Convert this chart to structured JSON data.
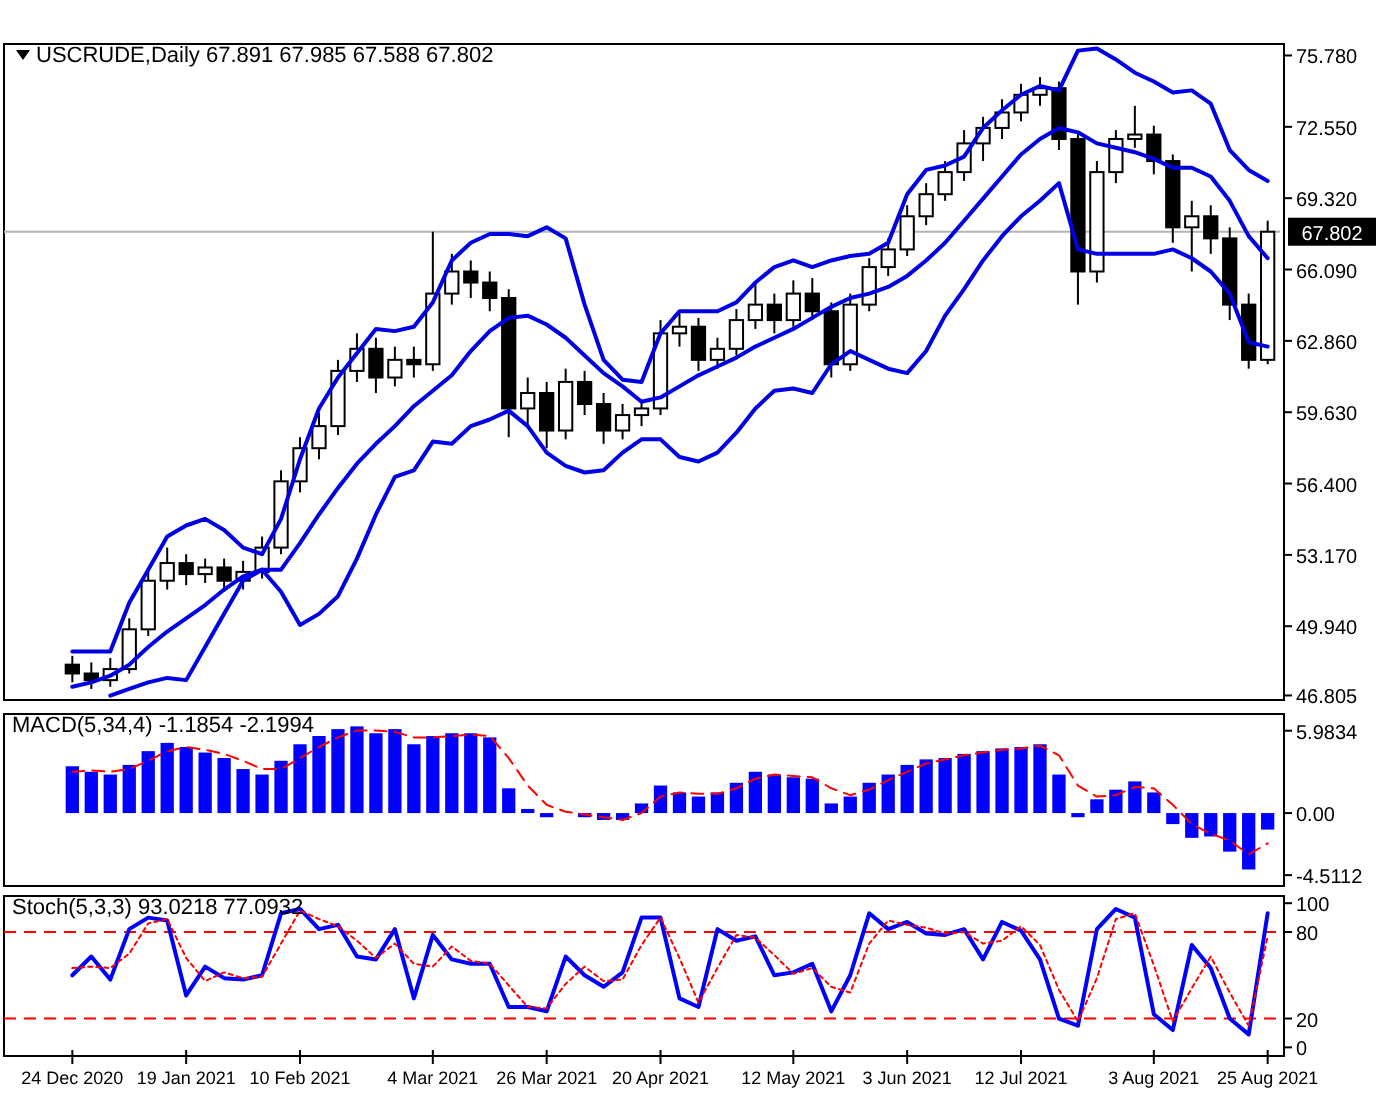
{
  "chart_data": [
    {
      "type": "candlestick",
      "title": "USCRUDE,Daily 67.891 67.985 67.588 67.802",
      "ohlc": [
        [
          48.2,
          48.6,
          47.4,
          47.8
        ],
        [
          47.8,
          48.3,
          47.1,
          47.5
        ],
        [
          47.5,
          48.5,
          47.2,
          48.0
        ],
        [
          48.0,
          50.3,
          47.8,
          49.8
        ],
        [
          49.8,
          52.6,
          49.5,
          52.0
        ],
        [
          52.0,
          53.5,
          51.6,
          52.8
        ],
        [
          52.8,
          53.2,
          51.8,
          52.3
        ],
        [
          52.3,
          53.0,
          51.9,
          52.6
        ],
        [
          52.6,
          53.0,
          51.5,
          52.0
        ],
        [
          52.0,
          52.9,
          51.6,
          52.4
        ],
        [
          52.4,
          54.0,
          52.1,
          53.5
        ],
        [
          53.5,
          57.0,
          53.2,
          56.5
        ],
        [
          56.5,
          58.5,
          56.0,
          58.0
        ],
        [
          58.0,
          59.6,
          57.5,
          59.0
        ],
        [
          59.0,
          62.0,
          58.6,
          61.5
        ],
        [
          61.5,
          63.2,
          61.0,
          62.5
        ],
        [
          62.5,
          63.0,
          60.5,
          61.2
        ],
        [
          61.2,
          62.6,
          60.8,
          62.0
        ],
        [
          62.0,
          62.6,
          61.2,
          61.8
        ],
        [
          61.8,
          67.8,
          61.5,
          65.0
        ],
        [
          65.0,
          66.8,
          64.5,
          66.0
        ],
        [
          66.0,
          66.5,
          64.8,
          65.5
        ],
        [
          65.5,
          66.0,
          64.2,
          64.8
        ],
        [
          64.8,
          65.2,
          58.5,
          59.8
        ],
        [
          59.8,
          61.2,
          59.0,
          60.5
        ],
        [
          60.5,
          61.0,
          58.0,
          58.8
        ],
        [
          58.8,
          61.6,
          58.4,
          61.0
        ],
        [
          61.0,
          61.5,
          59.5,
          60.0
        ],
        [
          60.0,
          60.5,
          58.2,
          58.8
        ],
        [
          58.8,
          60.0,
          58.4,
          59.5
        ],
        [
          59.5,
          60.2,
          59.0,
          59.8
        ],
        [
          59.8,
          63.8,
          59.5,
          63.2
        ],
        [
          63.2,
          64.2,
          62.6,
          63.5
        ],
        [
          63.5,
          63.9,
          61.5,
          62.0
        ],
        [
          62.0,
          63.0,
          61.6,
          62.5
        ],
        [
          62.5,
          64.3,
          62.2,
          63.8
        ],
        [
          63.8,
          65.5,
          63.4,
          64.5
        ],
        [
          64.5,
          65.0,
          63.2,
          63.8
        ],
        [
          63.8,
          65.6,
          63.5,
          65.0
        ],
        [
          65.0,
          65.7,
          63.8,
          64.2
        ],
        [
          64.2,
          64.6,
          61.2,
          61.8
        ],
        [
          61.8,
          65.0,
          61.5,
          64.5
        ],
        [
          64.5,
          66.6,
          64.2,
          66.2
        ],
        [
          66.2,
          67.5,
          65.8,
          67.0
        ],
        [
          67.0,
          69.0,
          66.7,
          68.5
        ],
        [
          68.5,
          70.0,
          68.1,
          69.5
        ],
        [
          69.5,
          71.0,
          69.2,
          70.5
        ],
        [
          70.5,
          72.4,
          70.1,
          71.8
        ],
        [
          71.8,
          73.0,
          71.0,
          72.5
        ],
        [
          72.5,
          73.8,
          72.0,
          73.2
        ],
        [
          73.2,
          74.5,
          72.8,
          74.0
        ],
        [
          74.0,
          74.8,
          73.5,
          74.3
        ],
        [
          74.3,
          74.6,
          71.5,
          72.0
        ],
        [
          72.0,
          72.3,
          64.5,
          66.0
        ],
        [
          66.0,
          71.0,
          65.5,
          70.5
        ],
        [
          70.5,
          72.4,
          70.0,
          72.0
        ],
        [
          72.0,
          73.5,
          71.6,
          72.2
        ],
        [
          72.2,
          72.6,
          70.4,
          71.0
        ],
        [
          71.0,
          71.3,
          67.3,
          68.0
        ],
        [
          68.0,
          69.2,
          66.0,
          68.5
        ],
        [
          68.5,
          69.0,
          66.8,
          67.5
        ],
        [
          67.5,
          68.0,
          63.8,
          64.5
        ],
        [
          64.5,
          65.0,
          61.6,
          62.0
        ],
        [
          62.0,
          68.3,
          61.8,
          67.8
        ]
      ],
      "series": [
        {
          "type": "line",
          "color": "#0000e6",
          "values": [
            48.8,
            48.8,
            48.8,
            51.0,
            52.5,
            54.0,
            54.5,
            54.8,
            54.3,
            53.5,
            53.2,
            54.8,
            57.5,
            59.8,
            61.2,
            62.3,
            63.4,
            63.3,
            63.5,
            64.6,
            66.5,
            67.3,
            67.7,
            67.7,
            67.6,
            68.0,
            67.5,
            64.5,
            62.0,
            61.1,
            61.0,
            63.2,
            64.2,
            64.2,
            64.2,
            64.6,
            65.5,
            66.2,
            66.5,
            66.2,
            66.5,
            66.7,
            66.8,
            67.3,
            69.5,
            70.6,
            70.8,
            71.2,
            72.5,
            73.3,
            74.0,
            74.4,
            74.2,
            76.0,
            76.1,
            75.6,
            75.0,
            74.6,
            74.1,
            74.2,
            73.6,
            71.5,
            70.6,
            70.1
          ]
        },
        {
          "type": "line",
          "color": "#0000e6",
          "values": [
            47.2,
            47.4,
            47.7,
            48.2,
            49.0,
            49.7,
            50.3,
            50.9,
            51.6,
            52.2,
            52.5,
            52.5,
            53.7,
            55.0,
            56.2,
            57.3,
            58.2,
            59.0,
            59.9,
            60.6,
            61.3,
            62.4,
            63.3,
            63.9,
            64.0,
            63.6,
            63.0,
            62.2,
            61.4,
            60.8,
            60.1,
            60.3,
            60.8,
            61.3,
            61.7,
            62.1,
            62.6,
            63.0,
            63.4,
            63.9,
            64.4,
            64.8,
            65.0,
            65.3,
            65.8,
            66.5,
            67.3,
            68.3,
            69.3,
            70.3,
            71.3,
            72.0,
            72.5,
            72.3,
            71.8,
            71.6,
            71.4,
            71.1,
            70.7,
            70.7,
            70.3,
            69.2,
            67.6,
            66.6
          ]
        },
        {
          "type": "line",
          "color": "#0000e6",
          "values": [
            null,
            null,
            46.8,
            47.1,
            47.4,
            47.6,
            47.5,
            49.0,
            50.5,
            52.0,
            52.5,
            51.5,
            50.0,
            50.5,
            51.3,
            53.0,
            55.0,
            56.7,
            57.0,
            58.3,
            58.2,
            59.0,
            59.3,
            59.7,
            59.0,
            57.8,
            57.2,
            56.9,
            57.0,
            57.8,
            58.4,
            58.4,
            57.6,
            57.4,
            57.8,
            58.7,
            59.8,
            60.6,
            60.7,
            60.5,
            61.8,
            62.4,
            62.0,
            61.6,
            61.4,
            62.4,
            64.0,
            65.2,
            66.5,
            67.6,
            68.5,
            69.2,
            70.0,
            67.0,
            66.8,
            66.8,
            66.8,
            66.8,
            67.0,
            66.6,
            66.0,
            65.0,
            62.8,
            62.6
          ]
        }
      ],
      "ylim": [
        46.6,
        76.3
      ],
      "yticks": [
        {
          "value": 75.78,
          "label": "75.780"
        },
        {
          "value": 72.55,
          "label": "72.550"
        },
        {
          "value": 69.32,
          "label": "69.320"
        },
        {
          "value": 66.09,
          "label": "66.090"
        },
        {
          "value": 62.86,
          "label": "62.860"
        },
        {
          "value": 59.63,
          "label": "59.630"
        },
        {
          "value": 56.4,
          "label": "56.400"
        },
        {
          "value": 53.17,
          "label": "53.170"
        },
        {
          "value": 49.94,
          "label": "49.940"
        },
        46.805
      ],
      "ref_lines": [
        {
          "axis": "y",
          "value": 67.802,
          "label": "67.802",
          "color": "#b4b4b4"
        }
      ]
    },
    {
      "type": "bar",
      "title": "MACD(5,34,4) -1.1854 -2.1994",
      "series": [
        {
          "type": "bar",
          "color": "#0000ff",
          "values": [
            3.4,
            3.0,
            2.8,
            3.5,
            4.5,
            5.1,
            4.8,
            4.4,
            4.0,
            3.2,
            2.8,
            3.8,
            5.0,
            5.6,
            6.1,
            6.3,
            5.8,
            6.1,
            5.0,
            5.6,
            5.8,
            5.8,
            5.5,
            1.8,
            0.3,
            -0.3,
            null,
            -0.3,
            -0.5,
            -0.5,
            0.7,
            2.0,
            1.5,
            1.2,
            1.5,
            2.2,
            3.0,
            2.8,
            2.6,
            2.5,
            0.7,
            1.2,
            2.2,
            2.8,
            3.5,
            3.9,
            4.0,
            4.3,
            4.5,
            4.7,
            4.8,
            5.0,
            2.8,
            -0.3,
            1.0,
            1.7,
            2.3,
            1.5,
            -0.8,
            -1.8,
            -1.7,
            -2.8,
            -4.1,
            -1.2
          ]
        },
        {
          "type": "line",
          "color": "#ff0000",
          "line_style": "dashed",
          "values": [
            3.0,
            3.1,
            3.0,
            3.2,
            3.8,
            4.5,
            4.8,
            4.6,
            4.3,
            3.8,
            3.2,
            3.2,
            4.0,
            4.8,
            5.5,
            6.0,
            6.0,
            5.9,
            5.5,
            5.5,
            5.6,
            5.7,
            5.6,
            4.0,
            2.0,
            0.6,
            0.1,
            -0.1,
            -0.3,
            -0.5,
            0.0,
            1.2,
            1.5,
            1.4,
            1.4,
            1.8,
            2.5,
            2.8,
            2.7,
            2.6,
            1.8,
            1.3,
            1.7,
            2.4,
            3.0,
            3.6,
            3.9,
            4.2,
            4.4,
            4.6,
            4.7,
            4.9,
            4.2,
            2.0,
            1.2,
            1.3,
            1.9,
            1.8,
            0.6,
            -0.8,
            -1.5,
            -2.0,
            -3.0,
            -2.2
          ]
        }
      ],
      "ylim": [
        -5.3,
        7.2
      ],
      "yticks": [
        5.9834,
        {
          "value": 0,
          "label": "0.00"
        },
        -4.5112
      ]
    },
    {
      "type": "line",
      "title": "Stoch(5,3,3) 93.0218 77.0932",
      "categories": [
        "24 Dec 2020",
        null,
        null,
        null,
        null,
        null,
        "19 Jan 2021",
        null,
        null,
        null,
        null,
        null,
        "10 Feb 2021",
        null,
        null,
        null,
        null,
        null,
        null,
        "4 Mar 2021",
        null,
        null,
        null,
        null,
        null,
        "26 Mar 2021",
        null,
        null,
        null,
        null,
        null,
        "20 Apr 2021",
        null,
        null,
        null,
        null,
        null,
        null,
        "12 May 2021",
        null,
        null,
        null,
        null,
        null,
        "3 Jun 2021",
        null,
        null,
        null,
        null,
        null,
        "12 Jul 2021",
        null,
        null,
        null,
        null,
        null,
        null,
        "3 Aug 2021",
        null,
        null,
        null,
        null,
        null,
        "25 Aug 2021"
      ],
      "series": [
        {
          "color": "#0000ff",
          "values": [
            50,
            63,
            47,
            82,
            90,
            88,
            36,
            56,
            48,
            47,
            50,
            93,
            96,
            82,
            85,
            63,
            61,
            82,
            34,
            78,
            61,
            58,
            58,
            28,
            28,
            25,
            63,
            50,
            42,
            52,
            90,
            90,
            34,
            28,
            82,
            74,
            77,
            50,
            52,
            58,
            25,
            50,
            93,
            82,
            87,
            79,
            78,
            82,
            61,
            87,
            81,
            61,
            20,
            15,
            82,
            96,
            90,
            23,
            12,
            71,
            55,
            20,
            9,
            93
          ]
        },
        {
          "color": "#ff0000",
          "line_style": "dotted",
          "values": [
            55,
            56,
            55,
            65,
            86,
            89,
            62,
            46,
            52,
            48,
            49,
            72,
            95,
            89,
            84,
            74,
            62,
            72,
            58,
            56,
            70,
            60,
            58,
            43,
            28,
            27,
            44,
            56,
            46,
            47,
            71,
            90,
            62,
            31,
            55,
            78,
            76,
            64,
            51,
            55,
            42,
            38,
            72,
            88,
            85,
            83,
            79,
            80,
            72,
            74,
            84,
            71,
            40,
            18,
            48,
            89,
            93,
            57,
            18,
            41,
            63,
            38,
            15,
            77
          ]
        }
      ],
      "ylim": [
        -6,
        105
      ],
      "yticks": [
        100,
        80,
        20,
        0
      ],
      "ref_lines": [
        {
          "axis": "y",
          "value": 80,
          "color": "#ff0000",
          "line_style": "dashed"
        },
        {
          "axis": "y",
          "value": 20,
          "color": "#ff0000",
          "line_style": "dashed"
        }
      ]
    }
  ]
}
